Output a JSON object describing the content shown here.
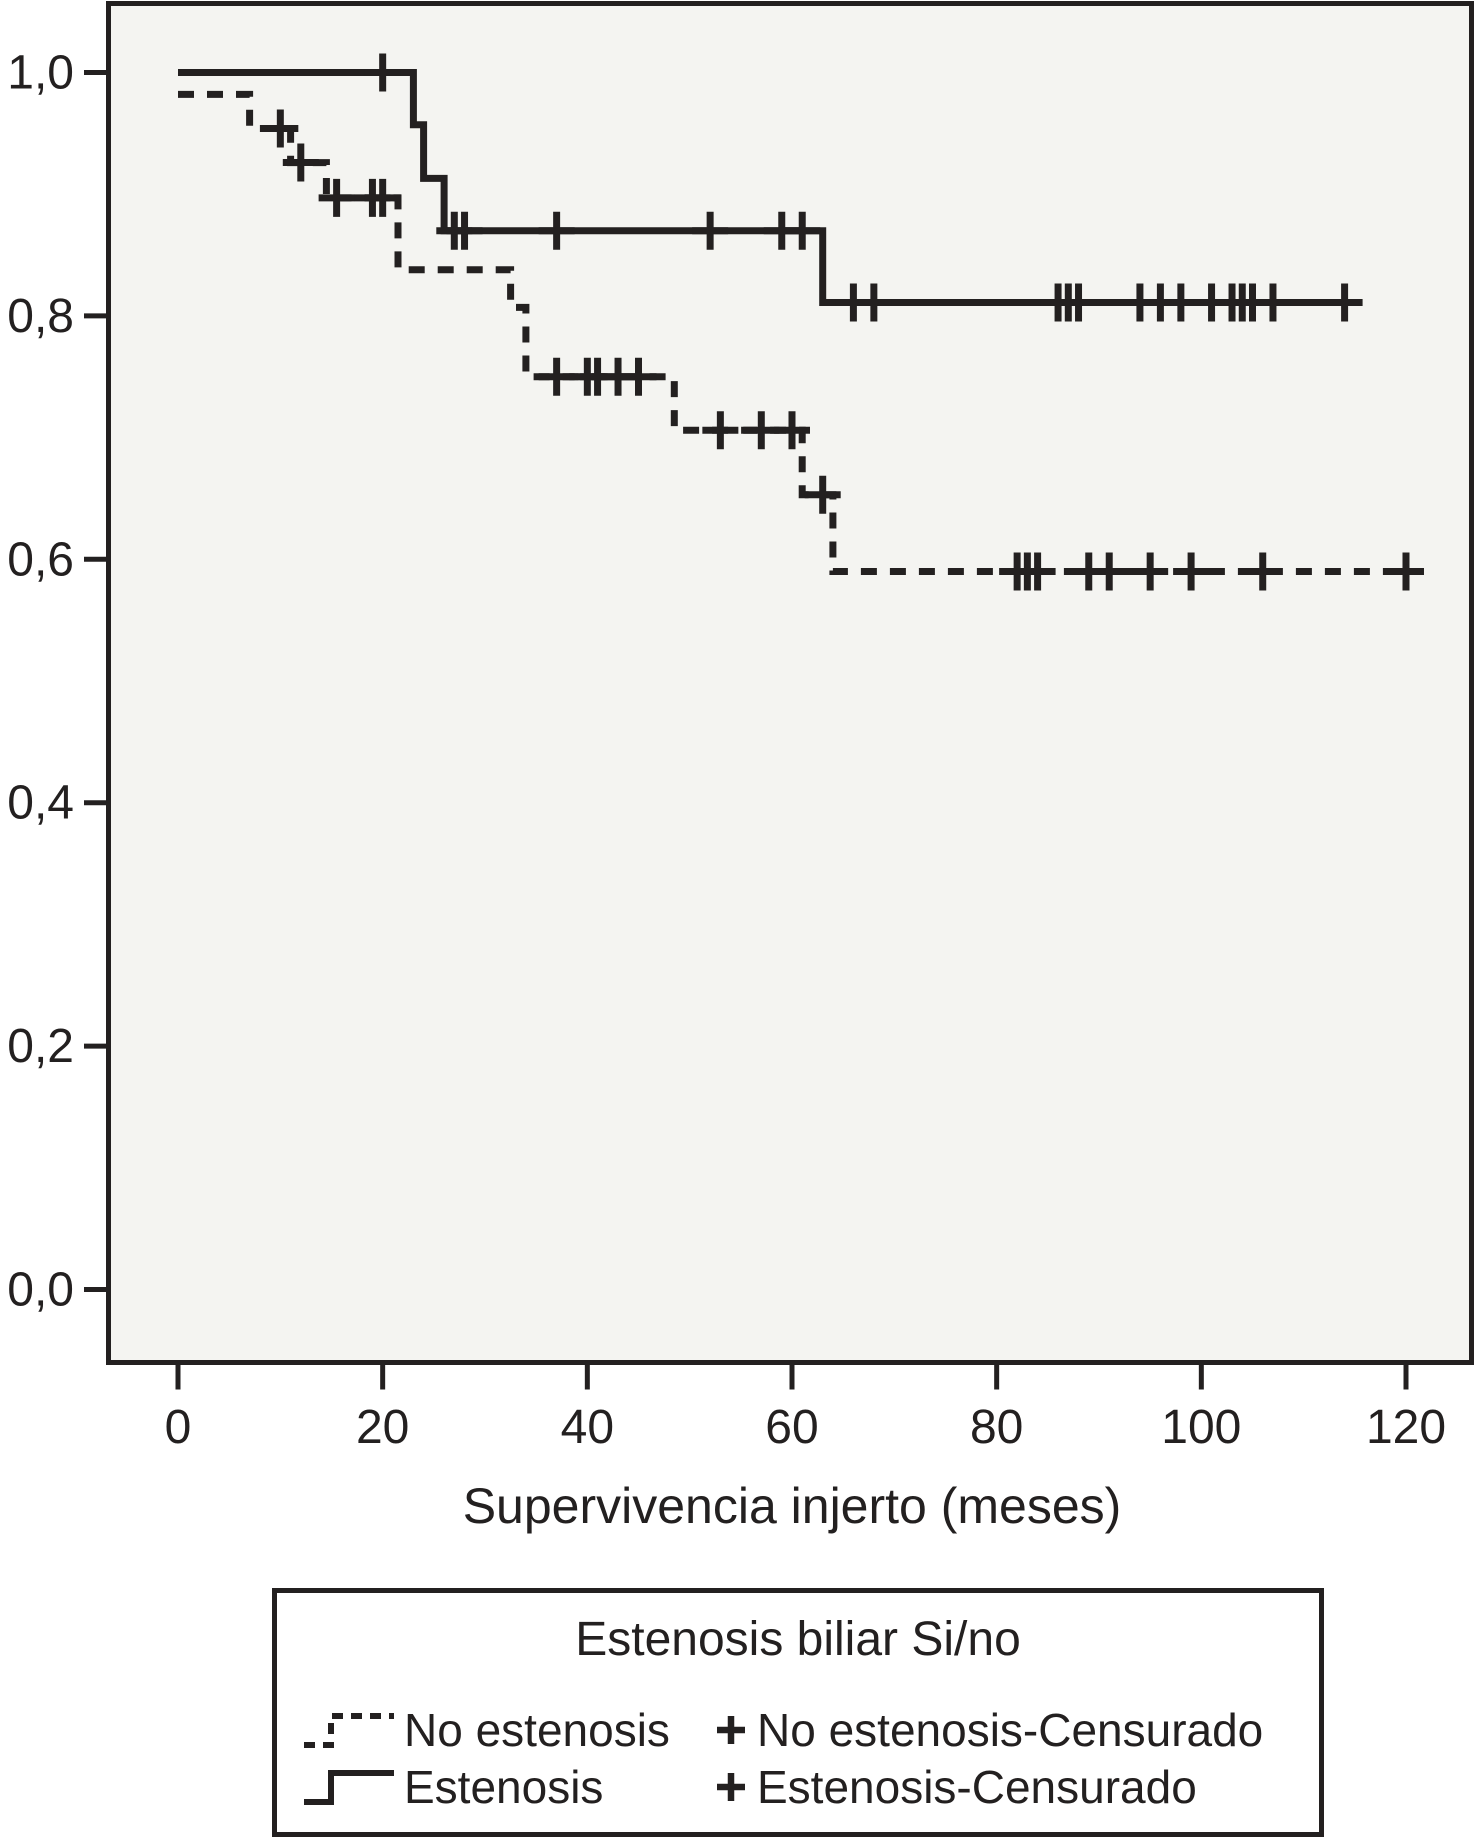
{
  "figure": {
    "ink_color": "#232020",
    "plot_background": "#f4f4f1",
    "page_background": "#ffffff"
  },
  "axes": {
    "x": {
      "title": "Supervivencia injerto (meses)",
      "ticks": [
        {
          "label": "0",
          "value": 0
        },
        {
          "label": "20",
          "value": 20
        },
        {
          "label": "40",
          "value": 40
        },
        {
          "label": "60",
          "value": 60
        },
        {
          "label": "80",
          "value": 80
        },
        {
          "label": "100",
          "value": 100
        },
        {
          "label": "120",
          "value": 120
        }
      ]
    },
    "y": {
      "ticks": [
        {
          "label": "1,0",
          "value": 1.0
        },
        {
          "label": "0,8",
          "value": 0.8
        },
        {
          "label": "0,6",
          "value": 0.6
        },
        {
          "label": "0,4",
          "value": 0.4
        },
        {
          "label": "0,2",
          "value": 0.2
        },
        {
          "label": "0,0",
          "value": 0.0
        }
      ]
    }
  },
  "chart_data": {
    "type": "line",
    "subtype": "kaplan-meier-step",
    "title": "",
    "xlabel": "Supervivencia injerto (meses)",
    "ylabel": "",
    "xlim": [
      -7,
      126
    ],
    "ylim": [
      -0.06,
      1.06
    ],
    "x_tick_values": [
      0,
      20,
      40,
      60,
      80,
      100,
      120
    ],
    "y_tick_labels": [
      "1,0",
      "0,8",
      "0,6",
      "0,4",
      "0,2",
      "0,0"
    ],
    "grid": false,
    "legend_position": "bottom",
    "series": [
      {
        "name": "No estenosis",
        "style": "dashed",
        "steps": [
          [
            0,
            0.982
          ],
          [
            7,
            0.954
          ],
          [
            11,
            0.926
          ],
          [
            14.5,
            0.897
          ],
          [
            21.5,
            0.838
          ],
          [
            32.5,
            0.807
          ],
          [
            34,
            0.75
          ],
          [
            48.5,
            0.706
          ],
          [
            61,
            0.653
          ],
          [
            64,
            0.59
          ]
        ],
        "end_t": 120.5,
        "censored": [
          [
            10,
            0.954
          ],
          [
            12,
            0.926
          ],
          [
            15.5,
            0.897
          ],
          [
            19,
            0.897
          ],
          [
            20,
            0.897
          ],
          [
            37,
            0.75
          ],
          [
            40,
            0.75
          ],
          [
            41,
            0.75
          ],
          [
            43,
            0.75
          ],
          [
            45,
            0.75
          ],
          [
            53,
            0.706
          ],
          [
            57,
            0.706
          ],
          [
            60,
            0.706
          ],
          [
            63,
            0.653
          ],
          [
            82,
            0.59
          ],
          [
            83,
            0.59
          ],
          [
            84,
            0.59
          ],
          [
            89,
            0.59
          ],
          [
            91,
            0.59
          ],
          [
            95,
            0.59
          ],
          [
            99,
            0.59
          ],
          [
            106,
            0.59
          ],
          [
            120,
            0.59
          ]
        ]
      },
      {
        "name": "Estenosis",
        "style": "solid",
        "steps": [
          [
            0,
            1.0
          ],
          [
            23,
            0.957
          ],
          [
            24,
            0.913
          ],
          [
            26,
            0.87
          ],
          [
            63,
            0.811
          ]
        ],
        "end_t": 115,
        "censored": [
          [
            20,
            1.0
          ],
          [
            27,
            0.87
          ],
          [
            28,
            0.87
          ],
          [
            37,
            0.87
          ],
          [
            52,
            0.87
          ],
          [
            59,
            0.87
          ],
          [
            61,
            0.87
          ],
          [
            66,
            0.811
          ],
          [
            68,
            0.811
          ],
          [
            86,
            0.811
          ],
          [
            87,
            0.811
          ],
          [
            88,
            0.811
          ],
          [
            94,
            0.811
          ],
          [
            96,
            0.811
          ],
          [
            98,
            0.811
          ],
          [
            101,
            0.811
          ],
          [
            103,
            0.811
          ],
          [
            104,
            0.811
          ],
          [
            105,
            0.811
          ],
          [
            107,
            0.811
          ],
          [
            114,
            0.811
          ]
        ]
      }
    ],
    "legend": {
      "title": "Estenosis biliar Si/no",
      "marker": "+",
      "rows": [
        {
          "line_label": "No estenosis",
          "censored_label": "No estenosis-Censurado",
          "line_style": "dashed"
        },
        {
          "line_label": "Estenosis",
          "censored_label": "Estenosis-Censurado",
          "line_style": "solid"
        }
      ]
    }
  }
}
